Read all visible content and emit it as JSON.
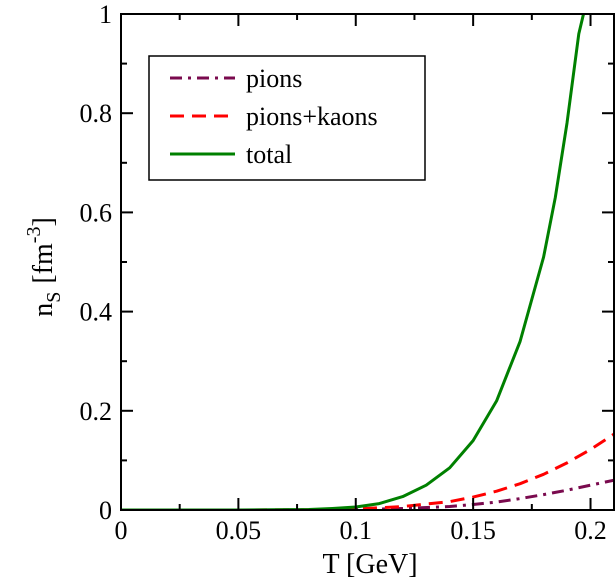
{
  "chart_data": {
    "type": "line",
    "xlabel": "T  [GeV]",
    "ylabel": {
      "base": "n",
      "base_sub": "S",
      "unit_open": "[fm",
      "unit_sup": "-3",
      "unit_close": "]"
    },
    "xlim": [
      0,
      0.21
    ],
    "ylim": [
      0,
      1
    ],
    "x_ticks": [
      0,
      0.05,
      0.1,
      0.15,
      0.2
    ],
    "x_tick_labels": [
      "0",
      "0.05",
      "0.1",
      "0.15",
      "0.2"
    ],
    "y_ticks": [
      0,
      0.2,
      0.4,
      0.6,
      0.8,
      1
    ],
    "y_tick_labels": [
      "0",
      "0.2",
      "0.4",
      "0.6",
      "0.8",
      "1"
    ],
    "grid": false,
    "legend_position": "top-left",
    "series": [
      {
        "name": "pions",
        "color": "#7a0a4e",
        "dash": "dash-dot",
        "x": [
          0,
          0.05,
          0.08,
          0.1,
          0.12,
          0.14,
          0.15,
          0.16,
          0.17,
          0.18,
          0.19,
          0.2,
          0.21
        ],
        "y": [
          0,
          0,
          0.0002,
          0.001,
          0.003,
          0.007,
          0.011,
          0.016,
          0.023,
          0.031,
          0.04,
          0.05,
          0.06
        ]
      },
      {
        "name": "pions+kaons",
        "color": "#ff0000",
        "dash": "dashed",
        "x": [
          0,
          0.05,
          0.08,
          0.1,
          0.12,
          0.14,
          0.15,
          0.16,
          0.17,
          0.18,
          0.19,
          0.2,
          0.21
        ],
        "y": [
          0,
          0,
          0.0005,
          0.002,
          0.007,
          0.017,
          0.026,
          0.038,
          0.053,
          0.072,
          0.095,
          0.122,
          0.153
        ]
      },
      {
        "name": "total",
        "color": "#008000",
        "dash": "solid",
        "x": [
          0,
          0.05,
          0.08,
          0.09,
          0.1,
          0.11,
          0.12,
          0.13,
          0.14,
          0.15,
          0.16,
          0.17,
          0.18,
          0.185,
          0.19,
          0.195,
          0.197
        ],
        "y": [
          0,
          0,
          0.001,
          0.003,
          0.006,
          0.013,
          0.027,
          0.05,
          0.085,
          0.14,
          0.22,
          0.34,
          0.51,
          0.63,
          0.78,
          0.96,
          1.0
        ]
      }
    ]
  }
}
